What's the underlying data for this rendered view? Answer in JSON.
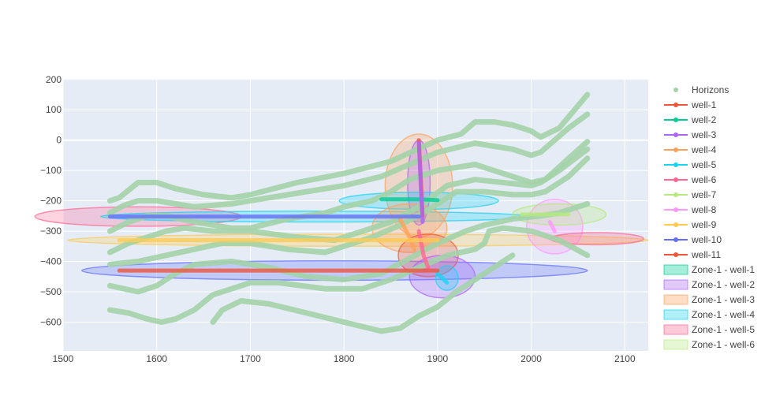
{
  "chart_data": {
    "type": "line",
    "xlim": [
      1500,
      2125
    ],
    "ylim": [
      -695,
      202
    ],
    "x_ticks": [
      1500,
      1600,
      1700,
      1800,
      1900,
      2000,
      2100
    ],
    "y_ticks": [
      200,
      100,
      0,
      -100,
      -200,
      -300,
      -400,
      -500,
      -600
    ],
    "grid": true,
    "legend_position": "right",
    "horizons": {
      "name": "Horizons",
      "color": "#a3d3a8",
      "lines": [
        [
          [
            1550,
            -200
          ],
          [
            1560,
            -190
          ],
          [
            1580,
            -140
          ],
          [
            1600,
            -140
          ],
          [
            1620,
            -160
          ],
          [
            1650,
            -180
          ],
          [
            1680,
            -190
          ],
          [
            1700,
            -180
          ],
          [
            1750,
            -140
          ],
          [
            1800,
            -110
          ],
          [
            1850,
            -70
          ],
          [
            1900,
            0
          ],
          [
            1925,
            20
          ],
          [
            1940,
            60
          ],
          [
            1960,
            60
          ],
          [
            1980,
            50
          ],
          [
            2000,
            30
          ],
          [
            2010,
            10
          ],
          [
            2030,
            40
          ],
          [
            2060,
            150
          ]
        ],
        [
          [
            1550,
            -240
          ],
          [
            1565,
            -215
          ],
          [
            1580,
            -200
          ],
          [
            1600,
            -200
          ],
          [
            1640,
            -220
          ],
          [
            1680,
            -210
          ],
          [
            1700,
            -200
          ],
          [
            1750,
            -175
          ],
          [
            1800,
            -150
          ],
          [
            1840,
            -120
          ],
          [
            1870,
            -80
          ],
          [
            1900,
            -40
          ],
          [
            1940,
            -10
          ],
          [
            1960,
            -20
          ],
          [
            1980,
            -30
          ],
          [
            2000,
            -50
          ],
          [
            2010,
            -40
          ],
          [
            2040,
            40
          ],
          [
            2060,
            85
          ]
        ],
        [
          [
            1550,
            -300
          ],
          [
            1570,
            -270
          ],
          [
            1590,
            -250
          ],
          [
            1610,
            -250
          ],
          [
            1640,
            -270
          ],
          [
            1680,
            -290
          ],
          [
            1700,
            -290
          ],
          [
            1740,
            -260
          ],
          [
            1780,
            -240
          ],
          [
            1800,
            -220
          ],
          [
            1830,
            -200
          ],
          [
            1850,
            -170
          ],
          [
            1870,
            -130
          ],
          [
            1900,
            -100
          ],
          [
            1940,
            -80
          ],
          [
            1960,
            -100
          ],
          [
            1980,
            -120
          ],
          [
            2000,
            -140
          ],
          [
            2015,
            -130
          ],
          [
            2040,
            -60
          ],
          [
            2060,
            -5
          ]
        ],
        [
          [
            1550,
            -370
          ],
          [
            1570,
            -340
          ],
          [
            1590,
            -320
          ],
          [
            1610,
            -300
          ],
          [
            1630,
            -290
          ],
          [
            1660,
            -300
          ],
          [
            1700,
            -300
          ],
          [
            1750,
            -320
          ],
          [
            1790,
            -330
          ],
          [
            1820,
            -300
          ],
          [
            1850,
            -270
          ],
          [
            1880,
            -220
          ],
          [
            1910,
            -150
          ],
          [
            1940,
            -130
          ],
          [
            1970,
            -140
          ],
          [
            2000,
            -150
          ],
          [
            2010,
            -140
          ],
          [
            2030,
            -100
          ],
          [
            2060,
            -30
          ]
        ],
        [
          [
            1550,
            -410
          ],
          [
            1580,
            -400
          ],
          [
            1610,
            -380
          ],
          [
            1640,
            -360
          ],
          [
            1670,
            -340
          ],
          [
            1700,
            -340
          ],
          [
            1740,
            -360
          ],
          [
            1780,
            -370
          ],
          [
            1800,
            -350
          ],
          [
            1830,
            -320
          ],
          [
            1860,
            -280
          ],
          [
            1890,
            -230
          ],
          [
            1920,
            -170
          ],
          [
            1950,
            -170
          ],
          [
            1980,
            -180
          ],
          [
            2000,
            -180
          ],
          [
            2015,
            -170
          ],
          [
            2040,
            -120
          ],
          [
            2060,
            -60
          ]
        ],
        [
          [
            1550,
            -480
          ],
          [
            1580,
            -500
          ],
          [
            1600,
            -480
          ],
          [
            1620,
            -440
          ],
          [
            1640,
            -410
          ],
          [
            1680,
            -400
          ],
          [
            1720,
            -420
          ],
          [
            1760,
            -450
          ],
          [
            1800,
            -460
          ],
          [
            1840,
            -440
          ],
          [
            1870,
            -390
          ],
          [
            1900,
            -340
          ],
          [
            1930,
            -300
          ],
          [
            1950,
            -280
          ],
          [
            1980,
            -260
          ],
          [
            2010,
            -250
          ],
          [
            2030,
            -240
          ],
          [
            2060,
            -210
          ]
        ],
        [
          [
            1550,
            -560
          ],
          [
            1570,
            -570
          ],
          [
            1590,
            -590
          ],
          [
            1605,
            -600
          ],
          [
            1620,
            -590
          ],
          [
            1640,
            -560
          ],
          [
            1660,
            -510
          ],
          [
            1680,
            -490
          ],
          [
            1700,
            -470
          ],
          [
            1730,
            -470
          ],
          [
            1780,
            -490
          ],
          [
            1820,
            -490
          ],
          [
            1850,
            -460
          ],
          [
            1880,
            -420
          ],
          [
            1910,
            -380
          ],
          [
            1940,
            -360
          ],
          [
            1950,
            -340
          ],
          [
            1955,
            -300
          ],
          [
            1970,
            -290
          ],
          [
            2000,
            -300
          ],
          [
            2030,
            -330
          ],
          [
            2060,
            -380
          ]
        ],
        [
          [
            1660,
            -600
          ],
          [
            1670,
            -560
          ],
          [
            1690,
            -530
          ],
          [
            1720,
            -540
          ],
          [
            1760,
            -570
          ],
          [
            1800,
            -600
          ],
          [
            1840,
            -630
          ],
          [
            1860,
            -620
          ],
          [
            1880,
            -580
          ],
          [
            1900,
            -550
          ],
          [
            1920,
            -500
          ],
          [
            1940,
            -460
          ],
          [
            1960,
            -420
          ],
          [
            1980,
            -380
          ]
        ]
      ]
    },
    "wells": [
      {
        "name": "well-1",
        "color": "#ef553b",
        "points": [
          [
            1880,
            0
          ],
          [
            1882,
            -120
          ],
          [
            1884,
            -250
          ]
        ]
      },
      {
        "name": "well-2",
        "color": "#00cc96",
        "points": [
          [
            1840,
            -195
          ],
          [
            1880,
            -195
          ],
          [
            1900,
            -198
          ]
        ]
      },
      {
        "name": "well-3",
        "color": "#ab63fa",
        "points": [
          [
            1880,
            -10
          ],
          [
            1882,
            -150
          ],
          [
            1884,
            -270
          ]
        ]
      },
      {
        "name": "well-4",
        "color": "#ffa15a",
        "points": [
          [
            1860,
            -260
          ],
          [
            1870,
            -320
          ],
          [
            1875,
            -360
          ]
        ]
      },
      {
        "name": "well-5",
        "color": "#19d3f3",
        "points": [
          [
            1900,
            -440
          ],
          [
            1910,
            -470
          ]
        ]
      },
      {
        "name": "well-6",
        "color": "#ff6692",
        "points": [
          [
            1880,
            -300
          ],
          [
            1885,
            -380
          ],
          [
            1890,
            -420
          ]
        ]
      },
      {
        "name": "well-7",
        "color": "#b6e880",
        "points": [
          [
            1990,
            -245
          ],
          [
            2040,
            -245
          ]
        ]
      },
      {
        "name": "well-8",
        "color": "#ff97ff",
        "points": [
          [
            2020,
            -270
          ],
          [
            2025,
            -300
          ]
        ]
      },
      {
        "name": "well-9",
        "color": "#fecb52",
        "points": [
          [
            1560,
            -330
          ],
          [
            1900,
            -330
          ]
        ]
      },
      {
        "name": "well-10",
        "color": "#636efa",
        "points": [
          [
            1550,
            -252
          ],
          [
            1880,
            -252
          ]
        ]
      },
      {
        "name": "well-11",
        "color": "#ef553b",
        "points": [
          [
            1560,
            -430
          ],
          [
            1900,
            -430
          ]
        ]
      }
    ],
    "zones": [
      {
        "name": "Zone-1 - well-1",
        "color": "#00cc96"
      },
      {
        "name": "Zone-1 - well-2",
        "color": "#ab63fa"
      },
      {
        "name": "Zone-1 - well-3",
        "color": "#ffa15a"
      },
      {
        "name": "Zone-1 - well-4",
        "color": "#19d3f3"
      },
      {
        "name": "Zone-1 - well-5",
        "color": "#ff6692"
      },
      {
        "name": "Zone-1 - well-6",
        "color": "#b6e880"
      }
    ],
    "ellipses": [
      {
        "cx": 1790,
        "cy": -430,
        "rx": 270,
        "ry": 32,
        "color": "#636efa"
      },
      {
        "cx": 1580,
        "cy": -252,
        "rx": 110,
        "ry": 32,
        "color": "#ff6692"
      },
      {
        "cx": 1770,
        "cy": -252,
        "rx": 230,
        "ry": 18,
        "color": "#19d3f3"
      },
      {
        "cx": 1815,
        "cy": -330,
        "rx": 310,
        "ry": 20,
        "color": "#fecb52"
      },
      {
        "cx": 1880,
        "cy": -150,
        "rx": 36,
        "ry": 170,
        "color": "#ffa15a"
      },
      {
        "cx": 1880,
        "cy": -140,
        "rx": 12,
        "ry": 140,
        "color": "#ab63fa"
      },
      {
        "cx": 1880,
        "cy": -200,
        "rx": 85,
        "ry": 28,
        "color": "#19d3f3"
      },
      {
        "cx": 1870,
        "cy": -290,
        "rx": 40,
        "ry": 80,
        "color": "#ffa15a"
      },
      {
        "cx": 1890,
        "cy": -380,
        "rx": 32,
        "ry": 70,
        "color": "#ef553b"
      },
      {
        "cx": 1905,
        "cy": -450,
        "rx": 35,
        "ry": 70,
        "color": "#ab63fa"
      },
      {
        "cx": 1910,
        "cy": -455,
        "rx": 12,
        "ry": 40,
        "color": "#19d3f3"
      },
      {
        "cx": 2025,
        "cy": -285,
        "rx": 30,
        "ry": 90,
        "color": "#ff97ff"
      },
      {
        "cx": 2030,
        "cy": -245,
        "rx": 50,
        "ry": 35,
        "color": "#b6e880"
      },
      {
        "cx": 2070,
        "cy": -325,
        "rx": 50,
        "ry": 20,
        "color": "#ff6692"
      }
    ]
  }
}
